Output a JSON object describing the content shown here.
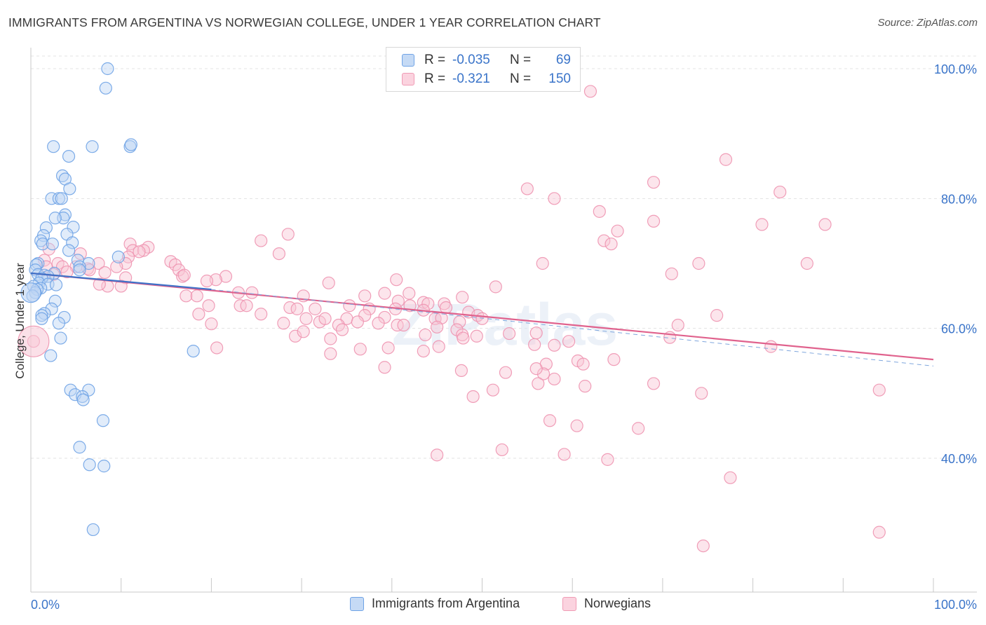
{
  "header": {
    "title": "IMMIGRANTS FROM ARGENTINA VS NORWEGIAN COLLEGE, UNDER 1 YEAR CORRELATION CHART",
    "source": "Source: ZipAtlas.com"
  },
  "legend": {
    "rows": [
      {
        "r_label": "R =",
        "r_value": "-0.035",
        "n_label": "N =",
        "n_value": "69",
        "color": "#6fa3e6"
      },
      {
        "r_label": "R =",
        "r_value": "-0.321",
        "n_label": "N =",
        "n_value": "150",
        "color": "#f09bb5"
      }
    ]
  },
  "chart_data": {
    "type": "scatter",
    "ylabel": "College, Under 1 year",
    "xlim": [
      0,
      100
    ],
    "ylim": [
      20,
      105
    ],
    "x_tick_labels": [
      "0.0%",
      "100.0%"
    ],
    "y_ticks": [
      {
        "value": 40,
        "label": "40.0%"
      },
      {
        "value": 60,
        "label": "60.0%"
      },
      {
        "value": 80,
        "label": "80.0%"
      },
      {
        "value": 100,
        "label": "100.0%"
      }
    ],
    "grid": "horizontal dashed",
    "watermark": "ZIPatlas",
    "series": [
      {
        "name": "Immigrants from Argentina",
        "color": "#6fa3e6",
        "points": [
          [
            8.5,
            100
          ],
          [
            8.3,
            97
          ],
          [
            2.5,
            88
          ],
          [
            4.2,
            86.5
          ],
          [
            6.8,
            88
          ],
          [
            11,
            88
          ],
          [
            11.1,
            88.3
          ],
          [
            3.5,
            83.5
          ],
          [
            3.8,
            83
          ],
          [
            4.3,
            81.5
          ],
          [
            2.3,
            80
          ],
          [
            3.1,
            80
          ],
          [
            3.4,
            80
          ],
          [
            3.8,
            77.5
          ],
          [
            3.6,
            77
          ],
          [
            2.7,
            77
          ],
          [
            4.7,
            75.6
          ],
          [
            1.7,
            75.5
          ],
          [
            4,
            74.5
          ],
          [
            1.4,
            74.3
          ],
          [
            1.1,
            73.5
          ],
          [
            4.6,
            73.2
          ],
          [
            1.3,
            73
          ],
          [
            2.4,
            73
          ],
          [
            4.2,
            72
          ],
          [
            9.7,
            71
          ],
          [
            5.2,
            70.5
          ],
          [
            0.8,
            70
          ],
          [
            0.6,
            69.8
          ],
          [
            6.4,
            70
          ],
          [
            5.4,
            69.5
          ],
          [
            5.4,
            69
          ],
          [
            0.5,
            69
          ],
          [
            2.6,
            68.5
          ],
          [
            0.8,
            68.3
          ],
          [
            1.5,
            68.2
          ],
          [
            1.9,
            68
          ],
          [
            1.2,
            67.7
          ],
          [
            0.9,
            67
          ],
          [
            1.9,
            66.8
          ],
          [
            2.8,
            66.7
          ],
          [
            0.3,
            66.5
          ],
          [
            1.1,
            66.2
          ],
          [
            0.7,
            66
          ],
          [
            0.5,
            65.5
          ],
          [
            0.2,
            65
          ],
          [
            2.7,
            64.2
          ],
          [
            2.3,
            63
          ],
          [
            1.5,
            62.3
          ],
          [
            1.2,
            62
          ],
          [
            3.7,
            61.7
          ],
          [
            1.2,
            61.5
          ],
          [
            3.1,
            60.8
          ],
          [
            3.3,
            58.5
          ],
          [
            18,
            56.5
          ],
          [
            2.2,
            55.8
          ],
          [
            4.4,
            50.5
          ],
          [
            6.4,
            50.5
          ],
          [
            4.9,
            49.8
          ],
          [
            5.7,
            49.5
          ],
          [
            5.8,
            49
          ],
          [
            8,
            45.8
          ],
          [
            5.4,
            41.7
          ],
          [
            6.5,
            39
          ],
          [
            8.1,
            38.8
          ],
          [
            6.9,
            29
          ]
        ],
        "trend": {
          "x": [
            0,
            20
          ],
          "y": [
            68.5,
            66
          ]
        }
      },
      {
        "name": "Norwegians",
        "color": "#f09bb5",
        "points": [
          [
            0.3,
            58
          ],
          [
            62,
            96.5
          ],
          [
            77,
            86
          ],
          [
            69,
            82.5
          ],
          [
            55,
            81.5
          ],
          [
            83,
            81
          ],
          [
            58,
            80
          ],
          [
            63,
            78
          ],
          [
            69,
            76.5
          ],
          [
            81,
            76
          ],
          [
            88,
            76
          ],
          [
            65,
            75
          ],
          [
            28.5,
            74.5
          ],
          [
            25.5,
            73.5
          ],
          [
            63.5,
            73.5
          ],
          [
            64.3,
            73
          ],
          [
            11,
            73
          ],
          [
            13,
            72.5
          ],
          [
            11.3,
            72
          ],
          [
            12.5,
            72
          ],
          [
            2,
            72.2
          ],
          [
            27.5,
            71.5
          ],
          [
            12,
            71.8
          ],
          [
            10.8,
            71
          ],
          [
            5.5,
            71.5
          ],
          [
            1.5,
            70.5
          ],
          [
            10.5,
            70
          ],
          [
            3,
            70
          ],
          [
            7.5,
            70
          ],
          [
            15.5,
            70.3
          ],
          [
            1.7,
            69.5
          ],
          [
            3.5,
            69.5
          ],
          [
            16,
            69.8
          ],
          [
            16.4,
            69
          ],
          [
            5,
            69.5
          ],
          [
            6.3,
            69.2
          ],
          [
            74,
            70
          ],
          [
            56.7,
            70
          ],
          [
            86,
            70
          ],
          [
            9.5,
            69.5
          ],
          [
            8.2,
            68.6
          ],
          [
            6.5,
            69
          ],
          [
            4,
            68.7
          ],
          [
            2.5,
            68.3
          ],
          [
            16.8,
            68
          ],
          [
            17,
            68.2
          ],
          [
            21.6,
            68
          ],
          [
            71,
            68.4
          ],
          [
            10.5,
            67.8
          ],
          [
            20.5,
            67.5
          ],
          [
            19.5,
            67.3
          ],
          [
            33,
            67
          ],
          [
            40.5,
            67.5
          ],
          [
            8.5,
            66.5
          ],
          [
            10,
            66.5
          ],
          [
            7.6,
            66.8
          ],
          [
            51.5,
            66.4
          ],
          [
            24.5,
            65.5
          ],
          [
            23,
            65.5
          ],
          [
            39.2,
            65.4
          ],
          [
            41.9,
            65.4
          ],
          [
            17.2,
            65
          ],
          [
            18.4,
            65
          ],
          [
            30.2,
            65
          ],
          [
            37,
            65
          ],
          [
            47.8,
            64.8
          ],
          [
            40.7,
            64.2
          ],
          [
            43.5,
            64
          ],
          [
            44,
            63.8
          ],
          [
            45.8,
            63.8
          ],
          [
            42,
            63.5
          ],
          [
            35.3,
            63.5
          ],
          [
            19.7,
            63.5
          ],
          [
            23.2,
            63.5
          ],
          [
            23.9,
            63.5
          ],
          [
            28.7,
            63.2
          ],
          [
            29.5,
            63
          ],
          [
            31.5,
            63
          ],
          [
            37.5,
            63
          ],
          [
            40.4,
            63
          ],
          [
            46,
            63.2
          ],
          [
            43.5,
            62.8
          ],
          [
            48.5,
            62.5
          ],
          [
            49.5,
            62
          ],
          [
            76,
            62
          ],
          [
            18.6,
            62.2
          ],
          [
            25.5,
            62.2
          ],
          [
            37,
            62
          ],
          [
            39.2,
            61.7
          ],
          [
            30.5,
            61.5
          ],
          [
            44.8,
            61.5
          ],
          [
            45.5,
            61.6
          ],
          [
            47.5,
            61
          ],
          [
            50,
            61.5
          ],
          [
            32,
            61
          ],
          [
            32.6,
            61.5
          ],
          [
            35,
            61.5
          ],
          [
            36.2,
            61
          ],
          [
            38.5,
            60.8
          ],
          [
            40.6,
            60.5
          ],
          [
            34.1,
            60.5
          ],
          [
            20,
            60.7
          ],
          [
            41.3,
            60.5
          ],
          [
            28,
            60.8
          ],
          [
            34.5,
            59.8
          ],
          [
            45,
            60.2
          ],
          [
            47.2,
            59.8
          ],
          [
            71.7,
            60.5
          ],
          [
            43.7,
            59
          ],
          [
            47.8,
            59
          ],
          [
            49.4,
            58.8
          ],
          [
            53,
            59.2
          ],
          [
            56,
            59.3
          ],
          [
            59.6,
            58
          ],
          [
            70.8,
            58.6
          ],
          [
            55.8,
            57.5
          ],
          [
            45.2,
            57.2
          ],
          [
            47.9,
            58.5
          ],
          [
            33.2,
            58.4
          ],
          [
            58,
            57.4
          ],
          [
            29.3,
            58.8
          ],
          [
            30.2,
            59.5
          ],
          [
            36.5,
            56.8
          ],
          [
            39.6,
            57
          ],
          [
            43.5,
            56.5
          ],
          [
            20.6,
            57
          ],
          [
            33.2,
            56.1
          ],
          [
            82,
            57.2
          ],
          [
            57.1,
            54.5
          ],
          [
            56.8,
            53
          ],
          [
            60.6,
            55
          ],
          [
            64.6,
            55.2
          ],
          [
            39.2,
            54
          ],
          [
            47.7,
            53.5
          ],
          [
            52.6,
            53.2
          ],
          [
            56,
            53.8
          ],
          [
            58,
            52.2
          ],
          [
            61.2,
            54.5
          ],
          [
            61.4,
            51.1
          ],
          [
            69,
            51.5
          ],
          [
            74.3,
            50
          ],
          [
            56.2,
            51.5
          ],
          [
            49,
            49.5
          ],
          [
            51.2,
            50.5
          ],
          [
            57.5,
            45.8
          ],
          [
            60.5,
            45
          ],
          [
            67.3,
            44.6
          ],
          [
            59.1,
            40.6
          ],
          [
            52.2,
            41.3
          ],
          [
            63.9,
            39.8
          ],
          [
            45,
            40.5
          ],
          [
            77.5,
            37
          ],
          [
            74.5,
            26.5
          ],
          [
            94,
            28.6
          ],
          [
            94,
            50.5
          ]
        ],
        "trend": {
          "x": [
            0,
            100
          ],
          "y": [
            68.5,
            55.2
          ]
        }
      }
    ]
  }
}
